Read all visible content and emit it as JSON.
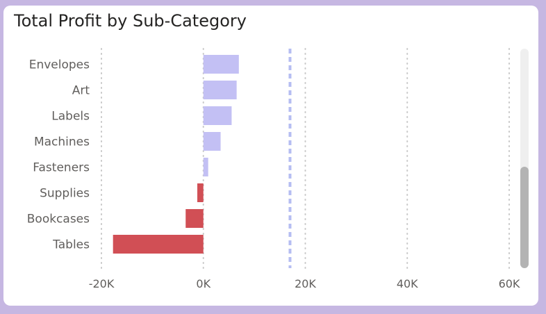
{
  "chart_data": {
    "type": "bar",
    "orientation": "horizontal",
    "title": "Total Profit by Sub-Category",
    "categories": [
      "Envelopes",
      "Art",
      "Labels",
      "Machines",
      "Fasteners",
      "Supplies",
      "Bookcases",
      "Tables"
    ],
    "values": [
      6964,
      6528,
      5546,
      3385,
      950,
      -1189,
      -3473,
      -17725
    ],
    "xlim": [
      -20000,
      60000
    ],
    "xticks": [
      -20000,
      0,
      20000,
      40000,
      60000
    ],
    "xtick_labels": [
      "-20K",
      "0K",
      "20K",
      "40K",
      "60K"
    ],
    "reference_line": 17000,
    "grid": "vertical-dotted",
    "colors": {
      "positive": "#c3c0f4",
      "negative": "#d14f55",
      "reference": "#b5bdf2",
      "grid": "#c8c8c8",
      "text": "#605e5c"
    }
  }
}
